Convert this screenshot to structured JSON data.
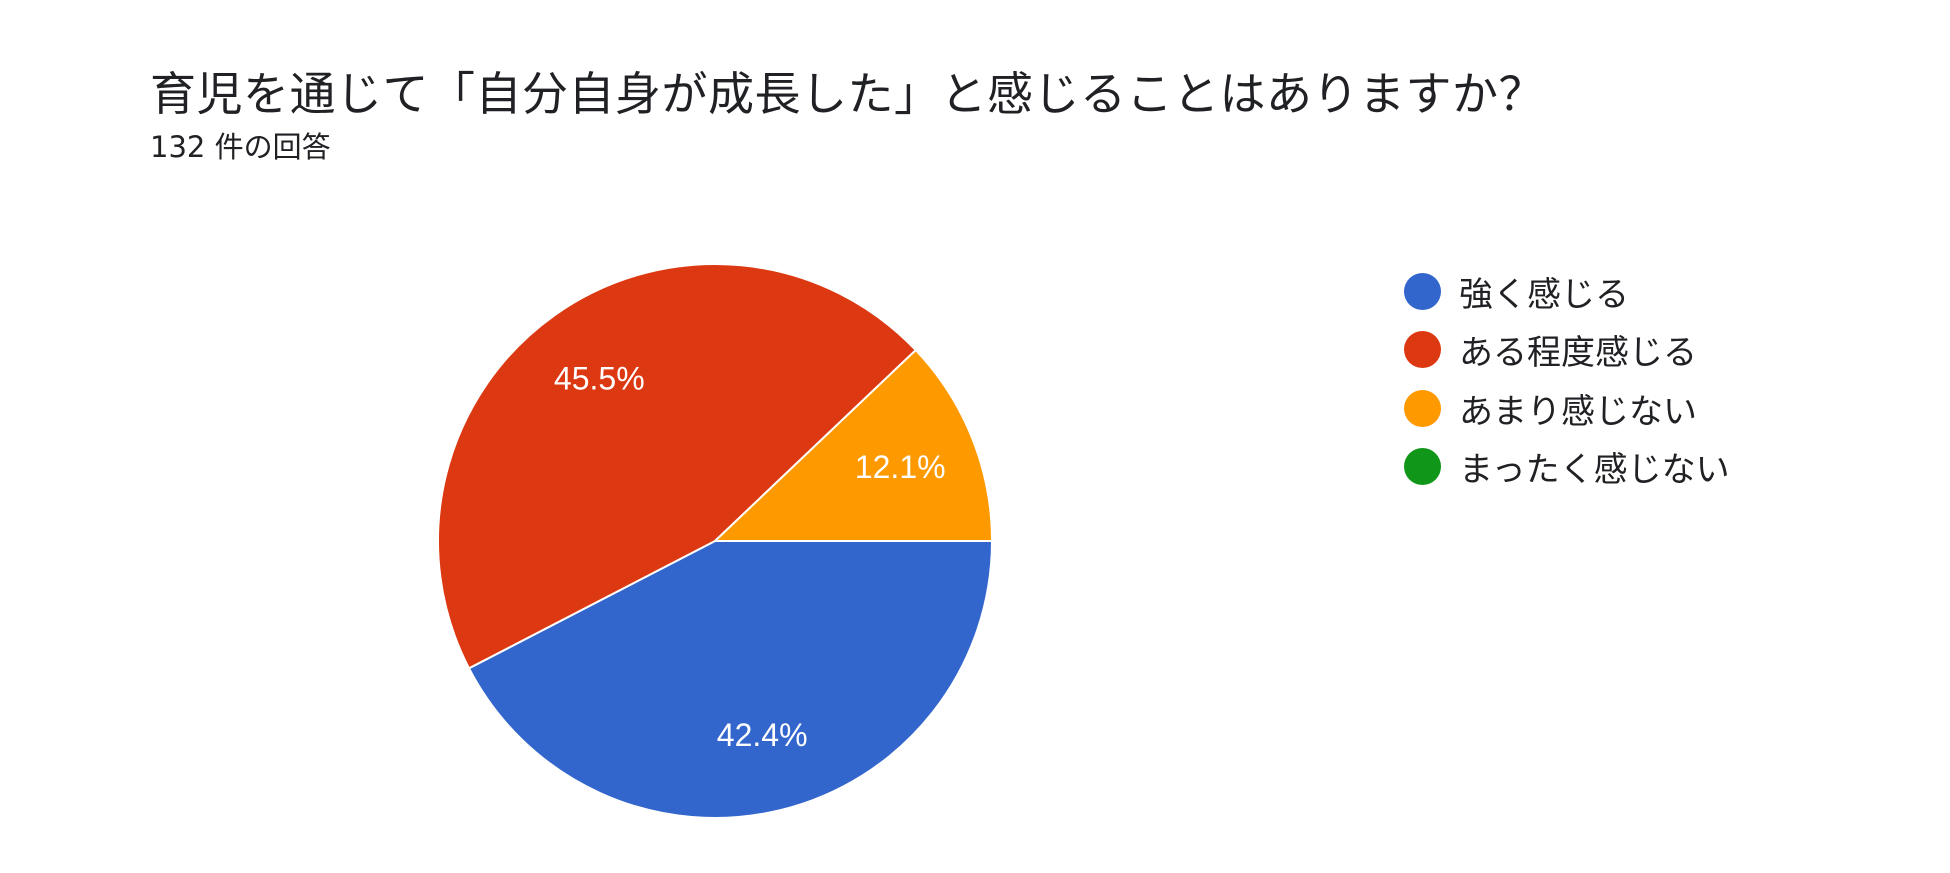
{
  "header": {
    "title": "育児を通じて「自分自身が成長した」と感じることはありますか？",
    "response_count": "132 件の回答"
  },
  "chart_data": {
    "type": "pie",
    "title": "育児を通じて「自分自身が成長した」と感じることはありますか？",
    "subtitle": "132 件の回答",
    "categories": [
      "強く感じる",
      "ある程度感じる",
      "あまり感じない",
      "まったく感じない"
    ],
    "values": [
      42.4,
      45.5,
      12.1,
      0
    ],
    "data_labels": [
      "42.4%",
      "45.5%",
      "12.1%",
      ""
    ],
    "colors": [
      "#3366cc",
      "#dc3912",
      "#ff9900",
      "#109618"
    ],
    "legend_position": "right"
  }
}
